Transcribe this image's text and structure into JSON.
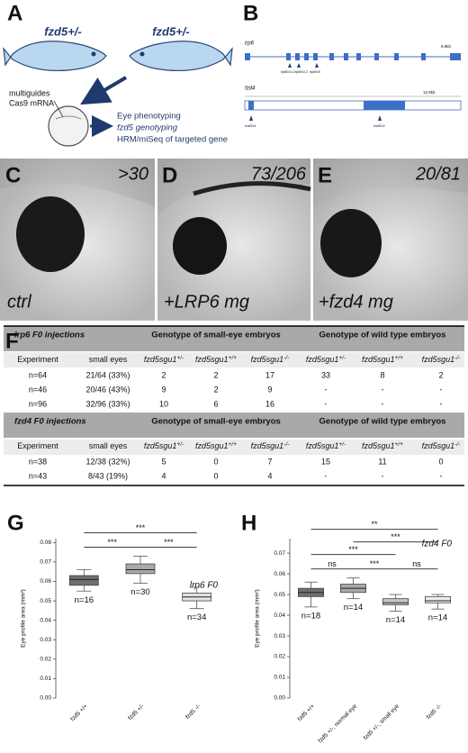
{
  "panels": {
    "a": {
      "label": "A",
      "parent_left": "fzd5+/-",
      "parent_right": "fzd5+/-",
      "injection": [
        "multiguides",
        "Cas9 mRNA"
      ],
      "readouts": [
        "Eye phenotyping",
        "fzd5 genotyping",
        "HRM/miSeq of targeted gene"
      ]
    },
    "b": {
      "label": "B",
      "genes": [
        {
          "name": "lrp6",
          "length": "9.9kb",
          "guides": [
            "lrp6Ex3.1",
            "lrp6Ex3.2",
            "lrp6Ex5"
          ]
        },
        {
          "name": "fzd4",
          "length": "12.8kb",
          "guides": [
            "fzd4Ex1",
            "fzd4Ex2"
          ]
        }
      ]
    },
    "images": [
      {
        "label": "C",
        "count": ">30",
        "condition": "ctrl"
      },
      {
        "label": "D",
        "count": "73/206",
        "condition": "+LRP6 mg"
      },
      {
        "label": "E",
        "count": "20/81",
        "condition": "+fzd4 mg"
      }
    ],
    "f": {
      "label": "F",
      "blocks": [
        {
          "title": "lrp6 F0 injections",
          "group_headers": [
            "Genotype of small-eye embryos",
            "Genotype of wild type embryos"
          ],
          "columns": [
            {
              "base": "Experiment"
            },
            {
              "base": "small eyes"
            },
            {
              "base": "fzd5sgu1",
              "sup": "+/-"
            },
            {
              "base": "fzd5sgu1",
              "sup": "+/+"
            },
            {
              "base": "fzd5sgu1",
              "sup": "-/-"
            },
            {
              "base": "fzd5sgu1",
              "sup": "+/-"
            },
            {
              "base": "fzd5sgu1",
              "sup": "+/+"
            },
            {
              "base": "fzd5sgu1",
              "sup": "-/-"
            }
          ],
          "rows": [
            [
              "n=64",
              "21/64 (33%)",
              2,
              2,
              17,
              33,
              8,
              2
            ],
            [
              "n=46",
              "20/46 (43%)",
              9,
              2,
              9,
              "-",
              "-",
              "-"
            ],
            [
              "n=96",
              "32/96 (33%)",
              10,
              6,
              16,
              "-",
              "-",
              "-"
            ]
          ]
        },
        {
          "title": "fzd4 F0 injections",
          "group_headers": [
            "Genotype of small-eye embryos",
            "Genotype of wild type embryos"
          ],
          "columns": [
            {
              "base": "Experiment"
            },
            {
              "base": "small eyes"
            },
            {
              "base": "fzd5sgu1",
              "sup": "+/-"
            },
            {
              "base": "fzd5sgu1",
              "sup": "+/+"
            },
            {
              "base": "fzd5sgu1",
              "sup": "-/-"
            },
            {
              "base": "fzd5sgu1",
              "sup": "+/-"
            },
            {
              "base": "fzd5sgu1",
              "sup": "+/+"
            },
            {
              "base": "fzd5sgu1",
              "sup": "-/-"
            }
          ],
          "rows": [
            [
              "n=38",
              "12/38 (32%)",
              5,
              0,
              7,
              15,
              11,
              0
            ],
            [
              "n=43",
              "8/43 (19%)",
              4,
              0,
              4,
              "-",
              "-",
              "-"
            ]
          ]
        }
      ]
    }
  },
  "chart_data": [
    {
      "type": "box",
      "label": "G",
      "title": "lrp6 F0",
      "y_label": "Eye profile area (mm²)",
      "categories": [
        "fzd5 +/+",
        "fzd5 +/-",
        "fzd5 -/-"
      ],
      "boxes": [
        {
          "min": 0.055,
          "q1": 0.058,
          "median": 0.061,
          "q3": 0.063,
          "max": 0.066
        },
        {
          "min": 0.059,
          "q1": 0.064,
          "median": 0.066,
          "q3": 0.069,
          "max": 0.073
        },
        {
          "min": 0.046,
          "q1": 0.05,
          "median": 0.052,
          "q3": 0.054,
          "max": 0.057
        }
      ],
      "colors": [
        "#6f6f6f",
        "#a9a9a9",
        "#e3e3e3"
      ],
      "n_labels": [
        "n=16",
        "n=30",
        "n=34"
      ],
      "significance": [
        {
          "label": "***",
          "between": [
            "fzd5 +/+",
            "fzd5 +/-"
          ]
        },
        {
          "label": "***",
          "between": [
            "fzd5 +/-",
            "fzd5 -/-"
          ]
        },
        {
          "label": "***",
          "between": [
            "fzd5 +/+",
            "fzd5 -/-"
          ]
        }
      ],
      "ylim": [
        0,
        0.082
      ],
      "yticks": [
        {
          "value": 0,
          "label": "0.00"
        },
        0.01,
        0.02,
        0.03,
        0.04,
        0.05,
        0.06,
        0.07,
        0.08
      ]
    },
    {
      "type": "box",
      "label": "H",
      "title": "fzd4 F0",
      "y_label": "Eye profile area (mm²)",
      "categories": [
        "fzd5 +/+",
        "fzd5 +/-, normal eye",
        "fzd5 +/-, small eye",
        "fzd5 -/-"
      ],
      "boxes": [
        {
          "min": 0.044,
          "q1": 0.049,
          "median": 0.051,
          "q3": 0.053,
          "max": 0.056
        },
        {
          "min": 0.048,
          "q1": 0.051,
          "median": 0.053,
          "q3": 0.055,
          "max": 0.058
        },
        {
          "min": 0.042,
          "q1": 0.045,
          "median": 0.046,
          "q3": 0.048,
          "max": 0.05
        },
        {
          "min": 0.043,
          "q1": 0.046,
          "median": 0.047,
          "q3": 0.049,
          "max": 0.05
        }
      ],
      "colors": [
        "#6f6f6f",
        "#a9a9a9",
        "#c6c6c6",
        "#ededed"
      ],
      "n_labels": [
        "n=18",
        "n=14",
        "n=14",
        "n=14"
      ],
      "significance": [
        {
          "label": "ns",
          "between": [
            "fzd5 +/+",
            "fzd5 +/-, normal eye"
          ]
        },
        {
          "label": "***",
          "between": [
            "fzd5 +/-, normal eye",
            "fzd5 +/-, small eye"
          ]
        },
        {
          "label": "ns",
          "between": [
            "fzd5 +/-, small eye",
            "fzd5 -/-"
          ]
        },
        {
          "label": "***",
          "between": [
            "fzd5 +/+",
            "fzd5 +/-, small eye"
          ]
        },
        {
          "label": "***",
          "between": [
            "fzd5 +/-, normal eye",
            "fzd5 -/-"
          ]
        },
        {
          "label": "**",
          "between": [
            "fzd5 +/+",
            "fzd5 -/-"
          ]
        }
      ],
      "ylim": [
        0,
        0.077
      ],
      "yticks": [
        {
          "value": 0,
          "label": "0.00"
        },
        0.01,
        0.02,
        0.03,
        0.04,
        0.05,
        0.06,
        0.07
      ]
    }
  ]
}
